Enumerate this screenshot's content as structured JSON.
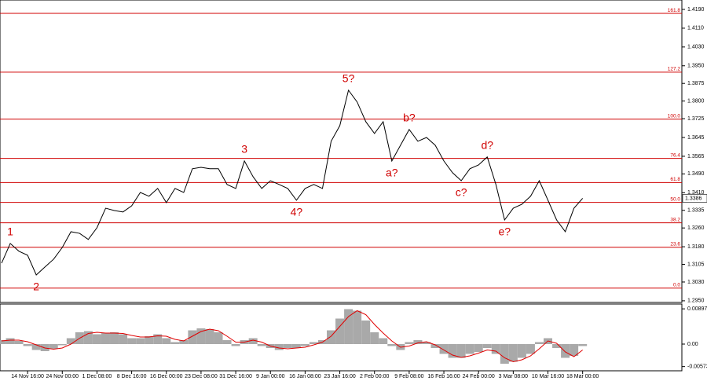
{
  "chart_data": [
    {
      "type": "line",
      "color": "#000000",
      "categories": [
        null,
        null,
        null,
        "14 Nov 16:00",
        null,
        null,
        null,
        "24 Nov 00:00",
        null,
        null,
        null,
        "1 Dec 08:00",
        null,
        null,
        null,
        "8 Dec 16:00",
        null,
        null,
        null,
        "16 Dec 00:00",
        null,
        null,
        null,
        "23 Dec 08:00",
        null,
        null,
        null,
        "31 Dec 16:00",
        null,
        null,
        null,
        "9 Jan 00:00",
        null,
        null,
        null,
        "16 Jan 08:00",
        null,
        null,
        null,
        "23 Jan 16:00",
        null,
        null,
        null,
        "2 Feb 00:00",
        null,
        null,
        null,
        "9 Feb 08:00",
        null,
        null,
        null,
        "16 Feb 16:00",
        null,
        null,
        null,
        "24 Feb 00:00",
        null,
        null,
        null,
        "3 Mar 08:00",
        null,
        null,
        null,
        "10 Mar 16:00",
        null,
        null,
        null,
        "18 Mar 00:00"
      ],
      "values": [
        1.311,
        1.3194,
        1.3161,
        1.3144,
        1.306,
        1.3094,
        1.3127,
        1.3177,
        1.3244,
        1.3237,
        1.3211,
        1.3261,
        1.3344,
        1.3334,
        1.3328,
        1.3354,
        1.3411,
        1.3395,
        1.3428,
        1.3368,
        1.3428,
        1.3411,
        1.3512,
        1.3518,
        1.3512,
        1.3512,
        1.3445,
        1.3428,
        1.3545,
        1.3478,
        1.3428,
        1.3461,
        1.3445,
        1.3428,
        1.3378,
        1.3428,
        1.3445,
        1.3428,
        1.3629,
        1.3695,
        1.3846,
        1.3796,
        1.3712,
        1.3662,
        1.3712,
        1.3545,
        1.3612,
        1.3679,
        1.3629,
        1.3645,
        1.3612,
        1.3545,
        1.3495,
        1.3461,
        1.3512,
        1.3528,
        1.3562,
        1.3445,
        1.3294,
        1.3344,
        1.3361,
        1.3395,
        1.3461,
        1.3378,
        1.3294,
        1.3244,
        1.3344,
        1.3386
      ],
      "last_price_label": "1.3386",
      "ylim": [
        1.2943,
        1.423
      ],
      "yticks": [
        {
          "value": 1.419,
          "label": "1.4190"
        },
        {
          "value": 1.411,
          "label": "1.4110"
        },
        {
          "value": 1.403,
          "label": "1.4030"
        },
        {
          "value": 1.395,
          "label": "1.3950"
        },
        {
          "value": 1.3875,
          "label": "1.3875"
        },
        {
          "value": 1.38,
          "label": "1.3800"
        },
        {
          "value": 1.3725,
          "label": "1.3725"
        },
        {
          "value": 1.3645,
          "label": "1.3645"
        },
        {
          "value": 1.3565,
          "label": "1.3565"
        },
        {
          "value": 1.349,
          "label": "1.3490"
        },
        {
          "value": 1.341,
          "label": "1.3410"
        },
        {
          "value": 1.3335,
          "label": "1.3335"
        },
        {
          "value": 1.326,
          "label": "1.3260"
        },
        {
          "value": 1.318,
          "label": "1.3180"
        },
        {
          "value": 1.3105,
          "label": "1.3105"
        },
        {
          "value": 1.303,
          "label": "1.3030"
        },
        {
          "value": 1.295,
          "label": "1.2950"
        }
      ],
      "fib_color": "#d00000",
      "fib_levels": [
        {
          "name": "161.8",
          "value": 1.4173
        },
        {
          "name": "127.2",
          "value": 1.3923
        },
        {
          "name": "100.0",
          "value": 1.3723
        },
        {
          "name": "76.4",
          "value": 1.3556
        },
        {
          "name": "61.8",
          "value": 1.3453
        },
        {
          "name": "50.0",
          "value": 1.3369
        },
        {
          "name": "38.2",
          "value": 1.3282
        },
        {
          "name": "23.6",
          "value": 1.3178
        },
        {
          "name": "0.0",
          "value": 1.3004
        }
      ],
      "annotations": [
        {
          "text": "1",
          "index": 1,
          "place": "above"
        },
        {
          "text": "2",
          "index": 4,
          "place": "below"
        },
        {
          "text": "3",
          "index": 28,
          "place": "above"
        },
        {
          "text": "4?",
          "index": 34,
          "place": "below"
        },
        {
          "text": "5?",
          "index": 40,
          "place": "above"
        },
        {
          "text": "a?",
          "index": 45,
          "place": "below"
        },
        {
          "text": "b?",
          "index": 47,
          "place": "above"
        },
        {
          "text": "c?",
          "index": 53,
          "place": "below"
        },
        {
          "text": "d?",
          "index": 56,
          "place": "above"
        },
        {
          "text": "e?",
          "index": 58,
          "place": "below"
        }
      ]
    },
    {
      "type": "macd",
      "color": "#a9a9a9",
      "line_color": "#e00000",
      "values": [
        0.001,
        0.0015,
        0.0008,
        -0.0005,
        -0.0015,
        -0.0018,
        -0.0012,
        -0.0003,
        0.0015,
        0.003,
        0.0033,
        0.0025,
        0.0028,
        0.003,
        0.0025,
        0.0015,
        0.0015,
        0.002,
        0.0025,
        0.0015,
        0.0005,
        0.001,
        0.0035,
        0.004,
        0.0038,
        0.003,
        0.001,
        -0.0005,
        0.001,
        0.0015,
        -0.0005,
        -0.001,
        -0.0015,
        -0.001,
        -0.001,
        -0.0005,
        0.0005,
        0.001,
        0.0035,
        0.0065,
        0.0089,
        0.0085,
        0.006,
        0.003,
        0.0015,
        -0.0005,
        -0.0015,
        0.0005,
        0.001,
        0.0005,
        -0.001,
        -0.0025,
        -0.0035,
        -0.0035,
        -0.0025,
        -0.002,
        -0.001,
        -0.0025,
        -0.005,
        -0.0045,
        -0.0035,
        -0.0025,
        0.0005,
        0.0015,
        -0.001,
        -0.0035,
        -0.003,
        -0.0005
      ],
      "line_values": [
        0.0008,
        0.001,
        0.001,
        0.0006,
        -0.0002,
        -0.001,
        -0.0013,
        -0.001,
        0,
        0.0015,
        0.0027,
        0.003,
        0.0028,
        0.0028,
        0.0027,
        0.0022,
        0.0018,
        0.0018,
        0.0021,
        0.002,
        0.0012,
        0.0008,
        0.002,
        0.0032,
        0.0038,
        0.0034,
        0.002,
        0.0005,
        0.0005,
        0.001,
        0.0005,
        -0.0005,
        -0.001,
        -0.0012,
        -0.001,
        -0.0008,
        -0.0002,
        0.0005,
        0.002,
        0.0045,
        0.007,
        0.0085,
        0.0075,
        0.005,
        0.0028,
        0.0008,
        -0.0008,
        -0.0005,
        0.0003,
        0.0006,
        -0.0002,
        -0.0015,
        -0.0028,
        -0.0034,
        -0.003,
        -0.0023,
        -0.0015,
        -0.0018,
        -0.0035,
        -0.0045,
        -0.004,
        -0.003,
        -0.0012,
        0.0008,
        0.0002,
        -0.002,
        -0.0032,
        -0.0015
      ],
      "ylim": [
        -0.0068,
        0.0102
      ],
      "yticks": [
        {
          "value": 0.00897,
          "label": "0.00897"
        },
        {
          "value": 0,
          "label": "0.00"
        },
        {
          "value": -0.00573,
          "label": "-0.00573"
        }
      ]
    }
  ]
}
